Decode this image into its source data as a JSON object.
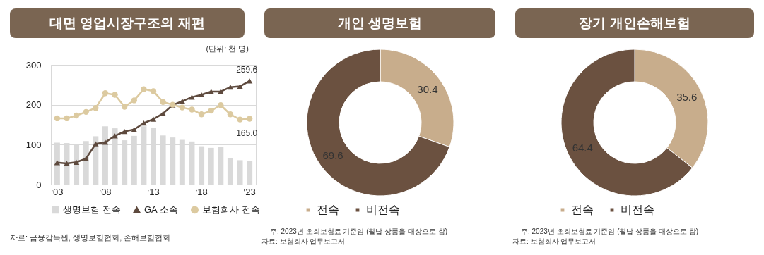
{
  "chart_data": [
    {
      "type": "bar",
      "title": "대면 영업시장구조의 재편",
      "categories": [
        "‘03",
        null,
        null,
        null,
        null,
        "‘08",
        null,
        null,
        null,
        null,
        "‘13",
        null,
        null,
        null,
        null,
        "‘18",
        null,
        null,
        null,
        null,
        "‘23"
      ],
      "ylim": [
        0,
        300
      ],
      "yticks": [
        0,
        100,
        200,
        300
      ],
      "grid": "y",
      "legend": "bottom",
      "series": [
        {
          "name": "생명보험 전속",
          "type": "bar",
          "color": "#d9d9d9",
          "values": [
            105,
            104,
            100,
            109,
            121,
            146,
            141,
            111,
            122,
            146,
            143,
            123,
            118,
            112,
            108,
            96,
            92,
            95,
            67,
            61,
            59
          ]
        },
        {
          "name": "GA 소속",
          "type": "line",
          "marker": "triangle",
          "color": "#5e4a3e",
          "values": [
            55,
            53,
            56,
            65,
            102,
            106,
            122,
            133,
            138,
            154,
            164,
            178,
            199,
            209,
            219,
            225,
            233,
            233,
            244,
            246,
            259.6
          ],
          "value_labels": [
            null,
            null,
            null,
            null,
            null,
            null,
            null,
            null,
            null,
            null,
            null,
            null,
            null,
            null,
            null,
            null,
            null,
            null,
            null,
            null,
            "259.6"
          ]
        },
        {
          "name": "보험회사 전속",
          "type": "line",
          "marker": "circle",
          "color": "#dccaa0",
          "values": [
            166,
            166,
            173,
            182,
            192,
            229,
            225,
            195,
            211,
            239,
            234,
            207,
            200,
            193,
            188,
            176,
            185,
            199,
            176,
            163,
            165.0
          ],
          "value_labels": [
            null,
            null,
            null,
            null,
            null,
            null,
            null,
            null,
            null,
            null,
            null,
            null,
            null,
            null,
            null,
            null,
            null,
            null,
            null,
            null,
            "165.0"
          ]
        }
      ],
      "annotations": [
        "(단위: 천 명)",
        "자료: 금융감독원, 생명보험협회, 손해보험협회"
      ]
    },
    {
      "type": "donut",
      "title": "개인 생명보험",
      "categories": [
        "전속",
        "비전속"
      ],
      "values": [
        30.4,
        69.6
      ],
      "colors": [
        "#c8ad8c",
        "#6b5140"
      ],
      "data_labels": true,
      "legend": "bottom",
      "annotations": [
        "주: 2023년 초회보험료 기준임 (월납 상품을 대상으로 함)",
        "자료: 보험회사 업무보고서"
      ]
    },
    {
      "type": "donut",
      "title": "장기 개인손해보험",
      "categories": [
        "전속",
        "비전속"
      ],
      "values": [
        35.6,
        64.4
      ],
      "colors": [
        "#c8ad8c",
        "#6b5140"
      ],
      "data_labels": true,
      "legend": "bottom",
      "annotations": [
        "주: 2023년 초회보험료 기준임 (월납 상품을 대상으로 함)",
        "자료: 보험회사 업무보고서"
      ]
    }
  ]
}
